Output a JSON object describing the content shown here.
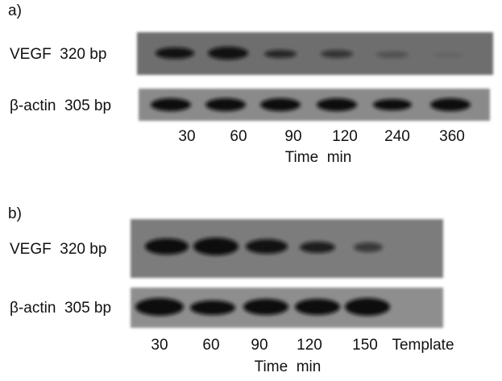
{
  "panels": [
    {
      "label": "a)",
      "rows": [
        {
          "label": "VEGF  320 bp"
        },
        {
          "label": "β-actin  305 bp"
        }
      ],
      "lanes": [
        "30",
        "60",
        "90",
        "120",
        "240",
        "360"
      ],
      "axis_title": "Time  min"
    },
    {
      "label": "b)",
      "rows": [
        {
          "label": "VEGF  320 bp"
        },
        {
          "label": "β-actin  305 bp"
        }
      ],
      "lanes": [
        "30",
        "60",
        "90",
        "120",
        "150",
        "Template"
      ],
      "axis_title": "Time  min"
    }
  ]
}
